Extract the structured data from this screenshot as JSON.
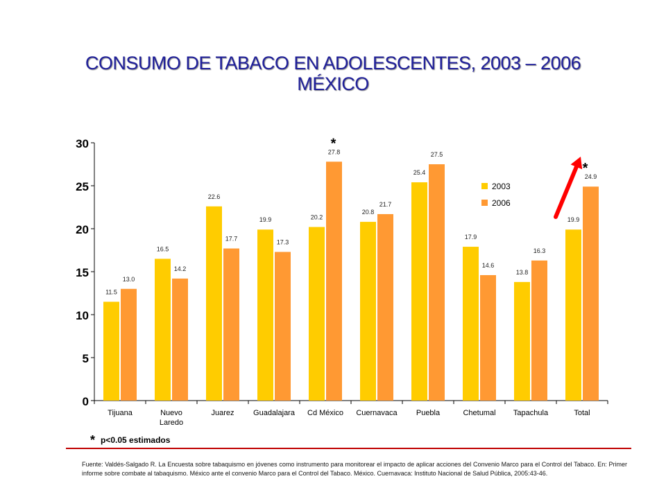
{
  "title": {
    "line1": "CONSUMO DE TABACO EN ADOLESCENTES, 2003 – 2006",
    "line2": "MÉXICO"
  },
  "colors": {
    "series_2003": "#ffcc00",
    "series_2006": "#ff9933",
    "title": "#1f1f9a",
    "arrow": "#ff0000",
    "rule": "#c00000"
  },
  "chart_data": {
    "type": "bar",
    "categories": [
      "Tijuana",
      "Nuevo Laredo",
      "Juarez",
      "Guadalajara",
      "Cd México",
      "Cuernavaca",
      "Puebla",
      "Chetumal",
      "Tapachula",
      "Total"
    ],
    "series": [
      {
        "name": "2003",
        "values": [
          11.5,
          16.5,
          22.6,
          19.9,
          20.2,
          20.8,
          25.4,
          17.9,
          13.8,
          19.9
        ],
        "labels": [
          "11.5",
          "16.5",
          "22.6",
          "19.9",
          "20.2",
          "20.8",
          "25.4",
          "17.9",
          "13.8",
          "19.9"
        ]
      },
      {
        "name": "2006",
        "values": [
          13.0,
          14.2,
          17.7,
          17.3,
          27.8,
          21.7,
          27.5,
          14.6,
          16.3,
          24.9
        ],
        "labels": [
          "13.0",
          "14.2",
          "17.7",
          "17.3",
          "27.8",
          "21.7",
          "27.5",
          "14.6",
          "16.3",
          "24.9"
        ]
      }
    ],
    "ylim": [
      0,
      30
    ],
    "yticks": [
      0,
      5,
      10,
      15,
      20,
      25,
      30
    ],
    "legend_position": "right",
    "significance_marks": [
      {
        "category": "Cd México",
        "symbol": "*"
      },
      {
        "category": "Total",
        "symbol": "*"
      }
    ],
    "arrow_category": "Total"
  },
  "footnote": {
    "symbol": "*",
    "text": "p<0.05 estimados"
  },
  "source": "Fuente: Valdés-Salgado R. La Encuesta sobre tabaquismo en jóvenes como instrumento para monitorear el impacto de aplicar acciones del Convenio Marco para el Control del Tabaco. En: Primer informe sobre combate al tabaquismo. México ante el convenio Marco para el Control del Tabaco. México. Cuernavaca: Instituto Nacional de Salud Pública, 2005:43-46."
}
